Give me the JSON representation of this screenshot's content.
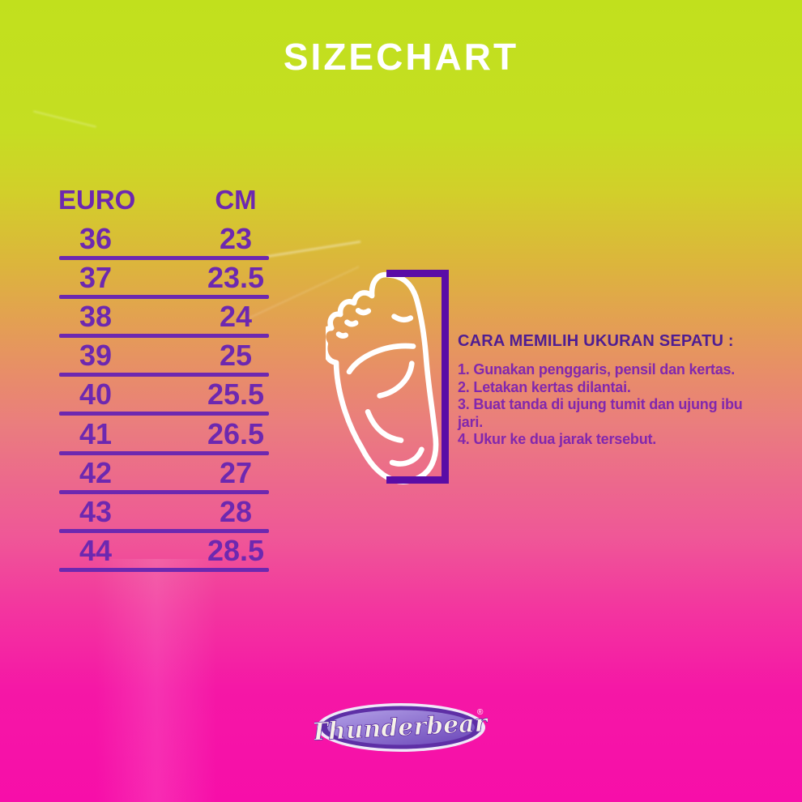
{
  "title": "SIZECHART",
  "table": {
    "headers": [
      "EURO",
      "CM"
    ],
    "rows": [
      [
        "36",
        "23"
      ],
      [
        "37",
        "23.5"
      ],
      [
        "38",
        "24"
      ],
      [
        "39",
        "25"
      ],
      [
        "40",
        "25.5"
      ],
      [
        "41",
        "26.5"
      ],
      [
        "42",
        "27"
      ],
      [
        "43",
        "28"
      ],
      [
        "44",
        "28.5"
      ]
    ]
  },
  "guide": {
    "heading": "CARA MEMILIH UKURAN SEPATU :",
    "steps": [
      "1. Gunakan penggaris, pensil dan kertas.",
      "2. Letakan kertas dilantai.",
      "3. Buat tanda di ujung tumit dan ujung ibu jari.",
      "4. Ukur ke dua jarak tersebut."
    ]
  },
  "brand": {
    "name": "Thunderbear",
    "registered": "®"
  },
  "colors": {
    "gradient_top": "#c1e01d",
    "gradient_mid": "#e88c6a",
    "gradient_bottom": "#f70ea9",
    "table_purple": "#6d28b0",
    "bracket_purple": "#5a0ca6",
    "guide_heading_purple": "#4f1d92",
    "guide_text_purple": "#8227ad",
    "title_white": "#ffffff",
    "logo_purple": "#5e2fa6"
  }
}
